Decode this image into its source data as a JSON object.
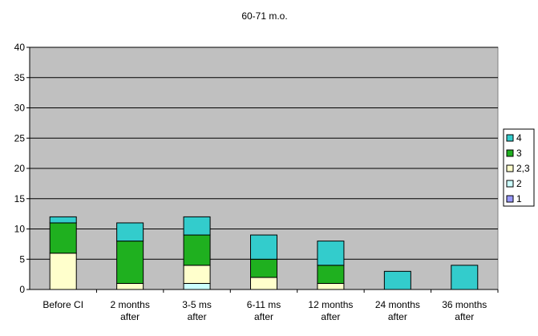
{
  "chart_data": {
    "type": "bar",
    "stacked": true,
    "title": "60-71 m.o.",
    "xlabel": "",
    "ylabel": "",
    "ylim": [
      0,
      40
    ],
    "yticks": [
      0,
      5,
      10,
      15,
      20,
      25,
      30,
      35,
      40
    ],
    "grid": true,
    "legend_position": "right",
    "categories": [
      [
        "Before CI"
      ],
      [
        "2 months",
        "after"
      ],
      [
        "3-5 ms",
        "after"
      ],
      [
        "6-11 ms",
        "after"
      ],
      [
        "12 months",
        "after"
      ],
      [
        "24 months",
        "after"
      ],
      [
        "36 months",
        "after"
      ]
    ],
    "series": [
      {
        "name": "1",
        "color": "#9999ff",
        "values": [
          0,
          0,
          0,
          0,
          0,
          0,
          0
        ]
      },
      {
        "name": "2",
        "color": "#ccffff",
        "values": [
          0,
          0,
          1,
          0,
          0,
          0,
          0
        ]
      },
      {
        "name": "2,3",
        "color": "#ffffcc",
        "values": [
          6,
          1,
          3,
          2,
          1,
          0,
          0
        ]
      },
      {
        "name": "3",
        "color": "#1fb01f",
        "values": [
          5,
          7,
          5,
          3,
          3,
          0,
          0
        ]
      },
      {
        "name": "4",
        "color": "#33cccc",
        "values": [
          1,
          3,
          3,
          4,
          4,
          3,
          4
        ]
      }
    ],
    "plot_background": "#c0c0c0"
  }
}
